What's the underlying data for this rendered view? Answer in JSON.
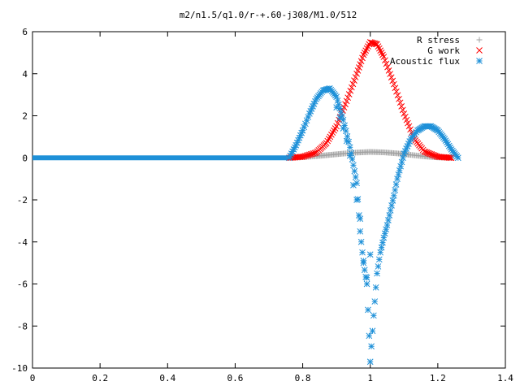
{
  "chart_data": {
    "type": "scatter",
    "title": "m2/n1.5/q1.0/r-+.60-j308/M1.0/512",
    "xlabel": "",
    "ylabel": "",
    "xlim": [
      0,
      1.4
    ],
    "ylim": [
      -10,
      6
    ],
    "grid": false,
    "legend_position": "top-right",
    "x_ticks": [
      "0",
      "0.2",
      "0.4",
      "0.6",
      "0.8",
      "1",
      "1.2",
      "1.4"
    ],
    "y_ticks": [
      "6",
      "4",
      "2",
      "0",
      "-2",
      "-4",
      "-6",
      "-8",
      "-10"
    ],
    "series": [
      {
        "name": "R stress",
        "marker": "plus",
        "color": "#a0a0a0",
        "x": [
          0.76,
          0.8,
          0.84,
          0.88,
          0.92,
          0.96,
          1.0,
          1.04,
          1.08,
          1.12,
          1.16,
          1.2,
          1.24
        ],
        "y": [
          0.0,
          0.03,
          0.08,
          0.14,
          0.2,
          0.25,
          0.28,
          0.26,
          0.21,
          0.14,
          0.07,
          0.02,
          0.0
        ]
      },
      {
        "name": "G work",
        "marker": "cross",
        "color": "#ff0000",
        "x": [
          0.76,
          0.8,
          0.84,
          0.87,
          0.9,
          0.93,
          0.96,
          0.98,
          1.0,
          1.02,
          1.04,
          1.07,
          1.1,
          1.13,
          1.16,
          1.2,
          1.24
        ],
        "y": [
          0.0,
          0.05,
          0.25,
          0.7,
          1.5,
          2.7,
          4.0,
          4.9,
          5.5,
          5.4,
          4.8,
          3.5,
          2.1,
          0.9,
          0.3,
          0.05,
          0.0
        ]
      },
      {
        "name": "Acoustic flux",
        "marker": "star",
        "color": "#1e90d8",
        "x": [
          0.76,
          0.78,
          0.8,
          0.82,
          0.84,
          0.86,
          0.88,
          0.9,
          0.92,
          0.94,
          0.96,
          0.97,
          0.98,
          0.99,
          1.0,
          1.01,
          1.02,
          1.03,
          1.04,
          1.05,
          1.06,
          1.07,
          1.08,
          1.09,
          1.1,
          1.12,
          1.14,
          1.16,
          1.18,
          1.2,
          1.22,
          1.24,
          1.26
        ],
        "y": [
          0.0,
          0.6,
          1.3,
          2.1,
          2.8,
          3.2,
          3.3,
          2.9,
          1.8,
          0.5,
          -1.2,
          -3.5,
          -5.0,
          -6.0,
          -9.7,
          -7.5,
          -5.5,
          -4.5,
          -3.8,
          -3.2,
          -2.5,
          -1.8,
          -1.0,
          -0.4,
          0.2,
          0.9,
          1.3,
          1.5,
          1.5,
          1.3,
          0.9,
          0.4,
          0.0
        ]
      },
      {
        "name": "",
        "marker": "star",
        "color": "#1e90d8",
        "x": [
          0.9,
          0.91,
          0.92,
          0.93,
          0.94,
          0.95,
          0.96,
          0.97,
          0.98,
          0.99,
          1.0
        ],
        "y": [
          2.4,
          1.9,
          1.4,
          0.8,
          0.1,
          -1.3,
          -2.0,
          -2.9,
          -4.9,
          -5.7,
          -4.6
        ]
      }
    ]
  }
}
